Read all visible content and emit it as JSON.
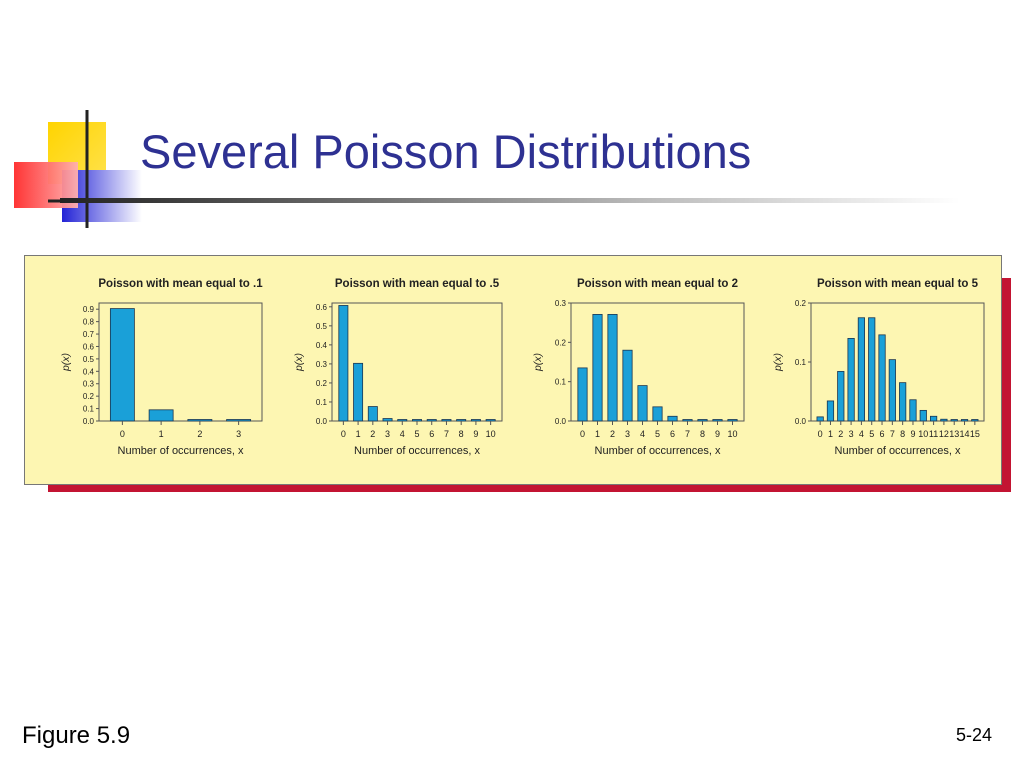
{
  "slide": {
    "title": "Several Poisson Distributions",
    "figure_label": "Figure 5.9",
    "slide_number": "5-24",
    "colors": {
      "title": "#2e3192",
      "bar": "#1aa0d8",
      "panel": "#fdf6b2",
      "shadow": "#c31432"
    }
  },
  "chart_data": [
    {
      "type": "bar",
      "title": "Poisson with mean equal to .1",
      "xlabel": "Number of occurrences, x",
      "ylabel": "p(x)",
      "categories": [
        "0",
        "1",
        "2",
        "3"
      ],
      "values": [
        0.905,
        0.09,
        0.005,
        0.0002
      ],
      "yticks": [
        "0.0",
        "0.1",
        "0.2",
        "0.3",
        "0.4",
        "0.5",
        "0.6",
        "0.7",
        "0.8",
        "0.9"
      ],
      "ylim": [
        0,
        0.95
      ]
    },
    {
      "type": "bar",
      "title": "Poisson with mean equal to .5",
      "xlabel": "Number of occurrences, x",
      "ylabel": "p(x)",
      "categories": [
        "0",
        "1",
        "2",
        "3",
        "4",
        "5",
        "6",
        "7",
        "8",
        "9",
        "10"
      ],
      "values": [
        0.607,
        0.303,
        0.076,
        0.013,
        0.002,
        0.0002,
        0,
        0,
        0,
        0,
        0
      ],
      "yticks": [
        "0.0",
        "0.1",
        "0.2",
        "0.3",
        "0.4",
        "0.5",
        "0.6"
      ],
      "ylim": [
        0,
        0.62
      ]
    },
    {
      "type": "bar",
      "title": "Poisson with mean equal to 2",
      "xlabel": "Number of occurrences, x",
      "ylabel": "p(x)",
      "categories": [
        "0",
        "1",
        "2",
        "3",
        "4",
        "5",
        "6",
        "7",
        "8",
        "9",
        "10"
      ],
      "values": [
        0.135,
        0.271,
        0.271,
        0.18,
        0.09,
        0.036,
        0.012,
        0.003,
        0.001,
        0.0002,
        0
      ],
      "yticks": [
        "0.0",
        "0.1",
        "0.2",
        "0.3"
      ],
      "ylim": [
        0,
        0.3
      ]
    },
    {
      "type": "bar",
      "title": "Poisson with mean equal to 5",
      "xlabel": "Number of occurrences, x",
      "ylabel": "p(x)",
      "categories": [
        "0",
        "1",
        "2",
        "3",
        "4",
        "5",
        "6",
        "7",
        "8",
        "9",
        "10",
        "11",
        "12",
        "13",
        "14",
        "15"
      ],
      "values": [
        0.007,
        0.034,
        0.084,
        0.14,
        0.175,
        0.175,
        0.146,
        0.104,
        0.065,
        0.036,
        0.018,
        0.008,
        0.003,
        0.001,
        0.0005,
        0.0002
      ],
      "yticks": [
        "0.0",
        "0.1",
        "0.2"
      ],
      "ylim": [
        0,
        0.2
      ]
    }
  ]
}
